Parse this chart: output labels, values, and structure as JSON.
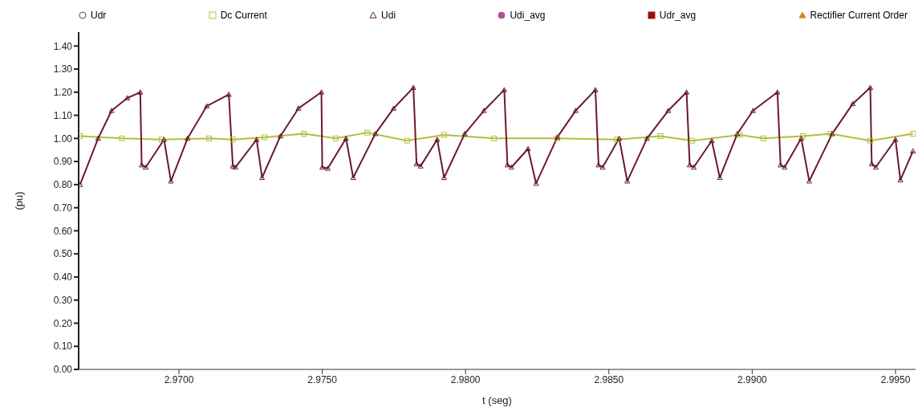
{
  "chart_data": {
    "type": "line",
    "xlabel": "t (seg)",
    "ylabel": "(pu)",
    "xlim": [
      2.9665,
      2.9957
    ],
    "ylim": [
      0,
      1.46
    ],
    "xticks": [
      {
        "value": 2.97,
        "label": "2.9700"
      },
      {
        "value": 2.975,
        "label": "2.9750"
      },
      {
        "value": 2.98,
        "label": "2.9800"
      },
      {
        "value": 2.985,
        "label": "2.9850"
      },
      {
        "value": 2.99,
        "label": "2.9900"
      },
      {
        "value": 2.995,
        "label": "2.9950"
      }
    ],
    "yticks": [
      {
        "value": 0,
        "label": "0.00"
      },
      {
        "value": 0.1,
        "label": "0.10"
      },
      {
        "value": 0.2,
        "label": "0.20"
      },
      {
        "value": 0.3,
        "label": "0.30"
      },
      {
        "value": 0.4,
        "label": "0.40"
      },
      {
        "value": 0.5,
        "label": "0.50"
      },
      {
        "value": 0.6,
        "label": "0.60"
      },
      {
        "value": 0.7,
        "label": "0.70"
      },
      {
        "value": 0.8,
        "label": "0.80"
      },
      {
        "value": 0.9,
        "label": "0.90"
      },
      {
        "value": 1,
        "label": "1.00"
      },
      {
        "value": 1.1,
        "label": "1.10"
      },
      {
        "value": 1.2,
        "label": "1.20"
      },
      {
        "value": 1.3,
        "label": "1.30"
      },
      {
        "value": 1.4,
        "label": "1.40"
      }
    ],
    "grid": false,
    "legend": "top",
    "line_style": "solid",
    "series": [
      {
        "name": "Udr",
        "color": "#7a3a4a",
        "marker": "circle"
      },
      {
        "name": "Dc Current",
        "color": "#b5bd3a",
        "marker": "square",
        "x": [
          2.96655,
          2.96801,
          2.96939,
          2.97105,
          2.97188,
          2.97298,
          2.97436,
          2.97547,
          2.97657,
          2.97796,
          2.97925,
          2.98099,
          2.9832,
          2.98528,
          2.9868,
          2.9879,
          2.98956,
          2.99039,
          2.99177,
          2.99273,
          2.99412,
          2.99561
        ],
        "values": [
          1.01,
          1.0,
          0.995,
          1.0,
          0.995,
          1.005,
          1.02,
          1.0,
          1.025,
          0.99,
          1.015,
          1.0,
          1.0,
          0.995,
          1.01,
          0.99,
          1.015,
          1.0,
          1.01,
          1.02,
          0.99,
          1.02
        ]
      },
      {
        "name": "Udi",
        "color": "#6a1a2c",
        "marker": "triangle",
        "x": [
          2.96655,
          2.96718,
          2.96765,
          2.9682,
          2.96865,
          2.9687,
          2.96884,
          2.96948,
          2.96972,
          2.9703,
          2.97097,
          2.97174,
          2.97188,
          2.97197,
          2.97271,
          2.9729,
          2.97354,
          2.97417,
          2.97497,
          2.975,
          2.97519,
          2.97583,
          2.97608,
          2.97685,
          2.97749,
          2.97818,
          2.97829,
          2.97843,
          2.97901,
          2.97925,
          2.97997,
          2.98064,
          2.98135,
          2.98146,
          2.9816,
          2.98218,
          2.98246,
          2.9832,
          2.98384,
          2.98453,
          2.98464,
          2.98478,
          2.98536,
          2.98564,
          2.98633,
          2.98707,
          2.98771,
          2.98782,
          2.98796,
          2.98859,
          2.98887,
          2.98948,
          2.99003,
          2.99088,
          2.99099,
          2.99113,
          2.99171,
          2.99199,
          2.99279,
          2.99351,
          2.99412,
          2.99417,
          2.99431,
          2.995,
          2.99517,
          2.99561
        ],
        "values": [
          0.8,
          1.0,
          1.12,
          1.175,
          1.2,
          0.885,
          0.875,
          0.995,
          0.815,
          1.0,
          1.14,
          1.19,
          0.88,
          0.875,
          0.995,
          0.83,
          1.01,
          1.13,
          1.2,
          0.875,
          0.87,
          1.0,
          0.83,
          1.02,
          1.13,
          1.22,
          0.89,
          0.88,
          0.995,
          0.83,
          1.02,
          1.12,
          1.21,
          0.885,
          0.875,
          0.955,
          0.805,
          1.005,
          1.12,
          1.21,
          0.885,
          0.875,
          1.0,
          0.815,
          1.0,
          1.12,
          1.2,
          0.885,
          0.875,
          0.99,
          0.83,
          1.02,
          1.12,
          1.2,
          0.885,
          0.875,
          1.0,
          0.815,
          1.02,
          1.15,
          1.22,
          0.89,
          0.875,
          0.995,
          0.82,
          0.945
        ]
      },
      {
        "name": "Udi_avg",
        "color": "#b0509a",
        "marker": "filled-circle"
      },
      {
        "name": "Udr_avg",
        "color": "#9a1010",
        "marker": "filled-square"
      },
      {
        "name": "Rectifier Current Order",
        "color": "#c8901a",
        "marker": "filled-triangle"
      }
    ]
  }
}
